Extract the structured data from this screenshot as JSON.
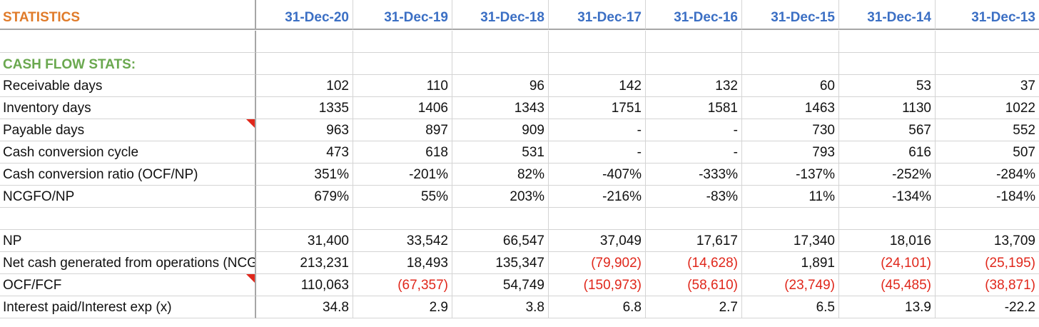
{
  "colors": {
    "title": "#e07b2a",
    "date_header": "#3b6fc4",
    "section": "#6aa84f",
    "negative": "#e0271b",
    "gridline": "#d4d4d4"
  },
  "header": {
    "title": "STATISTICS",
    "dates": [
      "31-Dec-20",
      "31-Dec-19",
      "31-Dec-18",
      "31-Dec-17",
      "31-Dec-16",
      "31-Dec-15",
      "31-Dec-14",
      "31-Dec-13"
    ]
  },
  "section_title": "CASH FLOW STATS:",
  "rows": [
    {
      "label": "Receivable days",
      "values": [
        "102",
        "110",
        "96",
        "142",
        "132",
        "60",
        "53",
        "37"
      ]
    },
    {
      "label": "Inventory days",
      "values": [
        "1335",
        "1406",
        "1343",
        "1751",
        "1581",
        "1463",
        "1130",
        "1022"
      ]
    },
    {
      "label": "Payable days",
      "values": [
        "963",
        "897",
        "909",
        "-",
        "-",
        "730",
        "567",
        "552"
      ]
    },
    {
      "label": "Cash conversion cycle",
      "values": [
        "473",
        "618",
        "531",
        "-",
        "-",
        "793",
        "616",
        "507"
      ]
    },
    {
      "label": "Cash conversion ratio (OCF/NP)",
      "values": [
        "351%",
        "-201%",
        "82%",
        "-407%",
        "-333%",
        "-137%",
        "-252%",
        "-284%"
      ]
    },
    {
      "label": "NCGFO/NP",
      "values": [
        "679%",
        "55%",
        "203%",
        "-216%",
        "-83%",
        "11%",
        "-134%",
        "-184%"
      ]
    }
  ],
  "rows2": [
    {
      "label": "NP",
      "values": [
        "31,400",
        "33,542",
        "66,547",
        "37,049",
        "17,617",
        "17,340",
        "18,016",
        "13,709"
      ]
    },
    {
      "label": "Net cash generated from operations (NCGFO)",
      "values": [
        "213,231",
        "18,493",
        "135,347",
        "(79,902)",
        "(14,628)",
        "1,891",
        "(24,101)",
        "(25,195)"
      ]
    },
    {
      "label": "OCF/FCF",
      "values": [
        "110,063",
        "(67,357)",
        "54,749",
        "(150,973)",
        "(58,610)",
        "(23,749)",
        "(45,485)",
        "(38,871)"
      ]
    },
    {
      "label": "Interest paid/Interest exp (x)",
      "values": [
        "34.8",
        "2.9",
        "3.8",
        "6.8",
        "2.7",
        "6.5",
        "13.9",
        "-22.2"
      ]
    }
  ]
}
